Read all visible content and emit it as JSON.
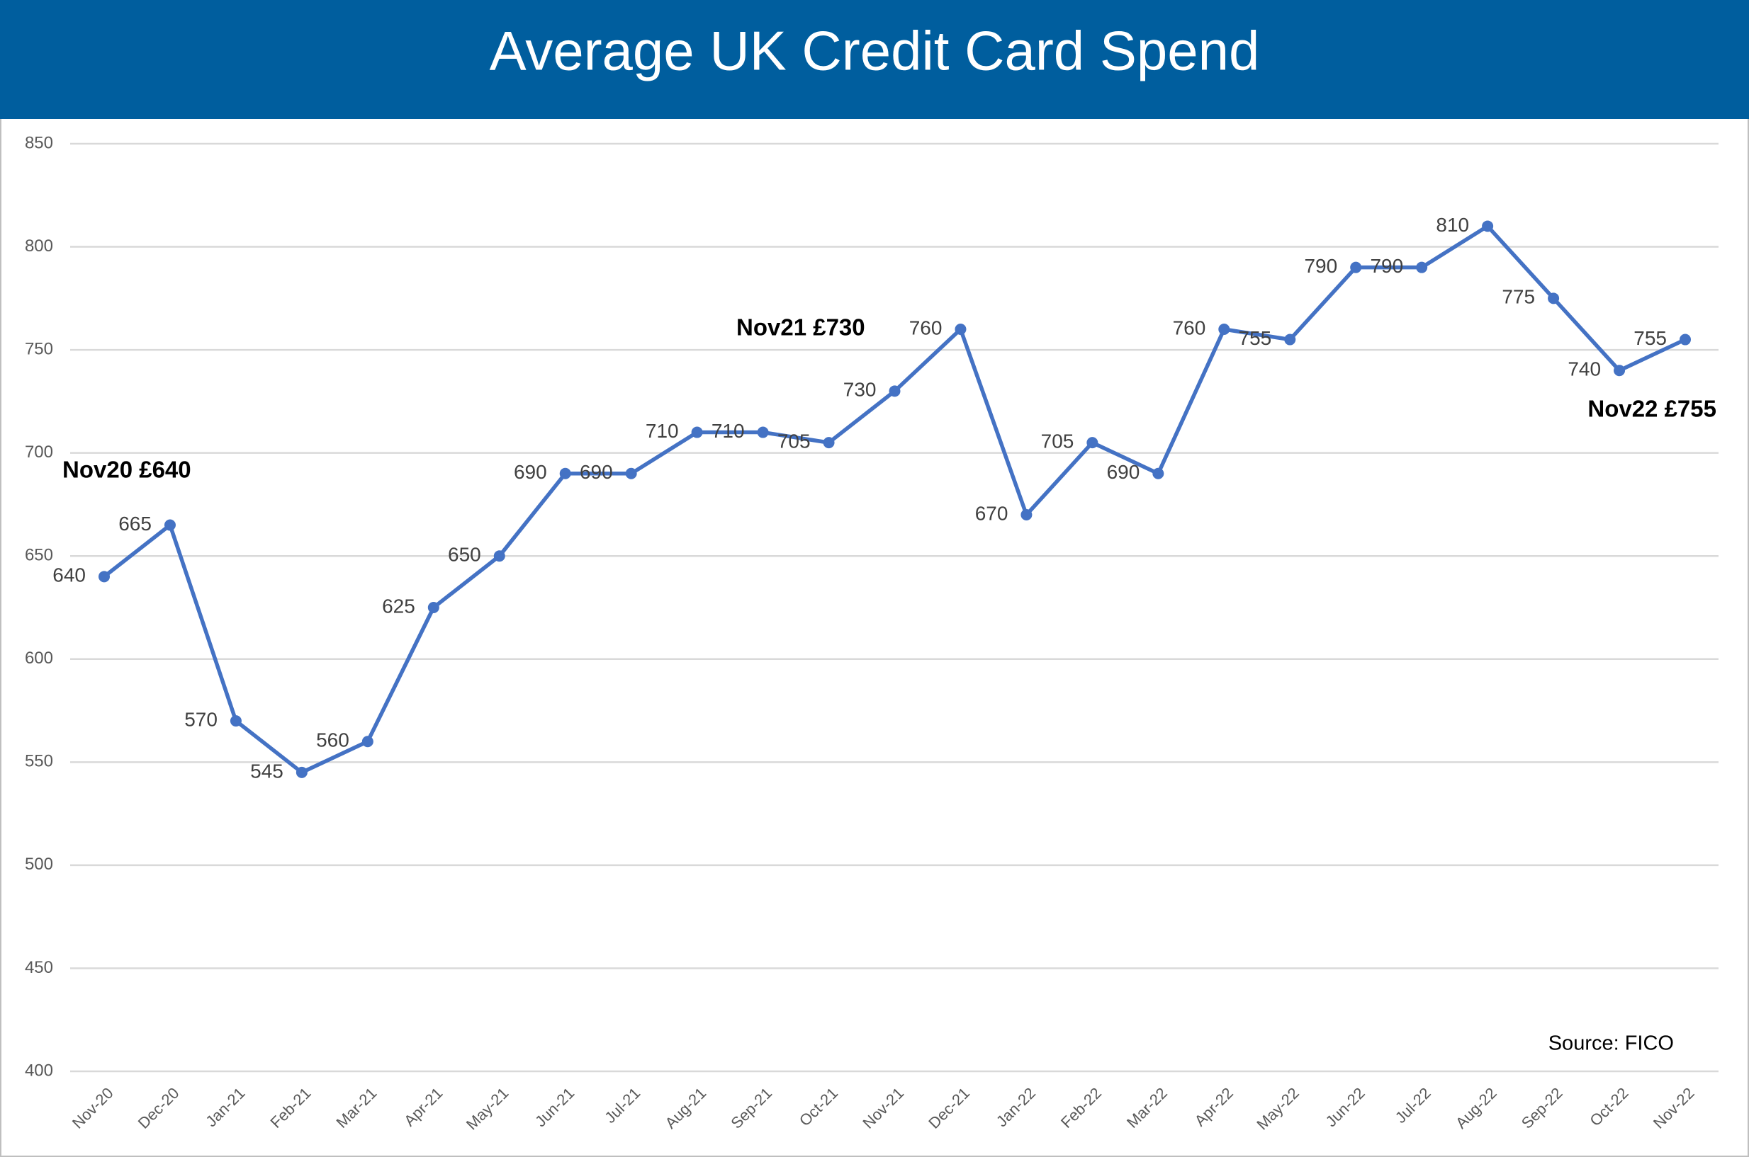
{
  "chart_data": {
    "type": "line",
    "title": "Average UK Credit Card Spend",
    "categories": [
      "Nov-20",
      "Dec-20",
      "Jan-21",
      "Feb-21",
      "Mar-21",
      "Apr-21",
      "May-21",
      "Jun-21",
      "Jul-21",
      "Aug-21",
      "Sep-21",
      "Oct-21",
      "Nov-21",
      "Dec-21",
      "Jan-22",
      "Feb-22",
      "Mar-22",
      "Apr-22",
      "May-22",
      "Jun-22",
      "Jul-22",
      "Aug-22",
      "Sep-22",
      "Oct-22",
      "Nov-22"
    ],
    "series": [
      {
        "name": "Average spend",
        "color": "#4472c4",
        "values": [
          640,
          665,
          570,
          545,
          560,
          625,
          650,
          690,
          690,
          710,
          710,
          705,
          730,
          760,
          670,
          705,
          690,
          760,
          755,
          790,
          790,
          810,
          775,
          740,
          755
        ]
      }
    ],
    "ylim": [
      400,
      850
    ],
    "yticks": [
      400,
      450,
      500,
      550,
      600,
      650,
      700,
      750,
      800,
      850
    ],
    "grid": true,
    "annotations": [
      "Nov20 £640",
      "Nov21 £730",
      "Nov22 £755",
      "Source: FICO"
    ]
  }
}
